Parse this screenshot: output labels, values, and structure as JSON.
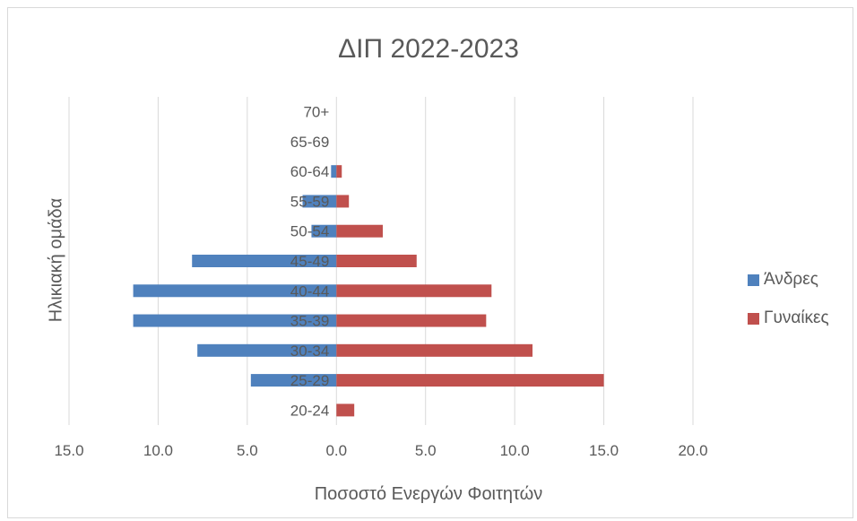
{
  "chart_data": {
    "type": "bar",
    "orientation": "horizontal",
    "title": "ΔΙΠ 2022-2023",
    "xlabel": "Ποσοστό Ενεργών Φοιτητών",
    "ylabel": "Ηλικιακή ομάδα",
    "xlim": [
      -15,
      20
    ],
    "x_ticks": [
      "15.0",
      "10.0",
      "5.0",
      "0.0",
      "5.0",
      "10.0",
      "15.0",
      "20.0"
    ],
    "categories": [
      "20-24",
      "25-29",
      "30-34",
      "35-39",
      "40-44",
      "45-49",
      "50-54",
      "55-59",
      "60-64",
      "65-69",
      "70+"
    ],
    "series": [
      {
        "name": "Άνδρες",
        "color": "#4f81bd",
        "values": [
          0.0,
          -4.8,
          -7.8,
          -11.4,
          -11.4,
          -8.1,
          -1.4,
          -1.9,
          -0.3,
          0.0,
          0.0
        ]
      },
      {
        "name": "Γυναίκες",
        "color": "#c0504d",
        "values": [
          1.0,
          15.0,
          11.0,
          8.4,
          8.7,
          4.5,
          2.6,
          0.7,
          0.3,
          0.0,
          0.0
        ]
      }
    ],
    "grid": true,
    "legend_position": "right"
  }
}
